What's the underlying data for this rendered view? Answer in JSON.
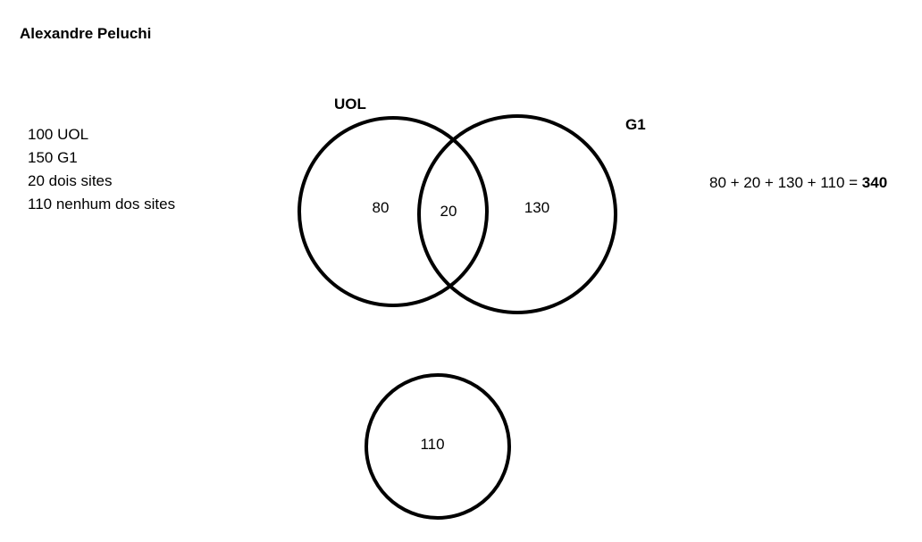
{
  "author": "Alexandre Peluchi",
  "givens": [
    "100 UOL",
    "150 G1",
    "20 dois sites",
    "110 nenhum dos sites"
  ],
  "sets": {
    "uol": {
      "label": "UOL",
      "only_value": "80"
    },
    "g1": {
      "label": "G1",
      "only_value": "130"
    },
    "intersection_value": "20",
    "none_value": "110"
  },
  "sum": {
    "expression": "80 + 20 + 130 + 110 = ",
    "total": "340"
  }
}
